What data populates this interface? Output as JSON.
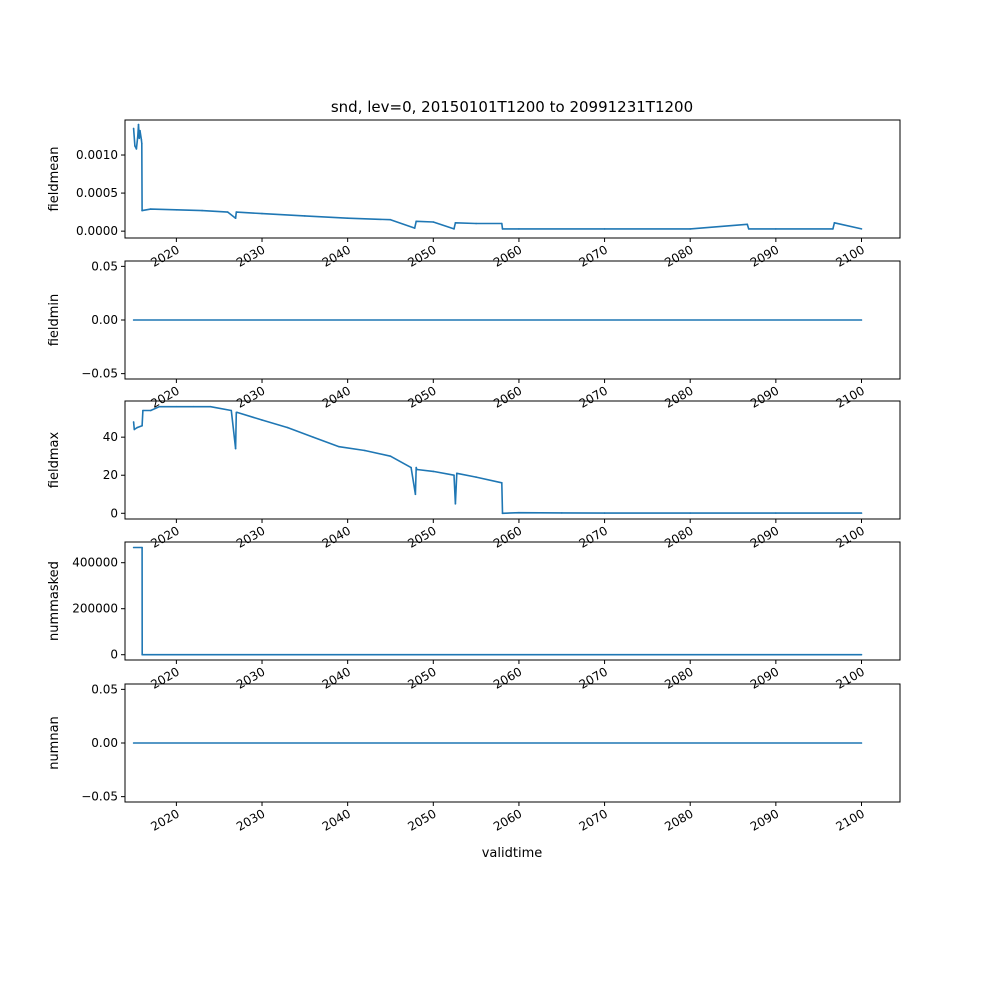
{
  "title": "snd, lev=0, 20150101T1200 to 20991231T1200",
  "xlabel": "validtime",
  "colors": {
    "line": "#1f77b4",
    "axes": "#000000",
    "background": "#ffffff"
  },
  "chart_data": {
    "type": "line",
    "grid": false,
    "legend": "none",
    "x_ticks": [
      "2020",
      "2030",
      "2040",
      "2050",
      "2060",
      "2070",
      "2080",
      "2090",
      "2100"
    ],
    "x_range": [
      "2014-01-01",
      "2104-07-01"
    ],
    "panels": [
      {
        "ylabel": "fieldmean",
        "ylim": [
          -9e-05,
          0.00146
        ],
        "y_ticks": [
          {
            "v": 0.0,
            "label": "0.0000"
          },
          {
            "v": 0.0005,
            "label": "0.0005"
          },
          {
            "v": 0.001,
            "label": "0.0010"
          }
        ],
        "series": [
          {
            "x": [
              "2015-01-01",
              "2015-03-01",
              "2015-05-01",
              "2015-07-01",
              "2015-08-01",
              "2015-09-01",
              "2015-10-01",
              "2015-12-01",
              "2015-12-20",
              "2016-01-01",
              "2017-01-01",
              "2020-01-01",
              "2023-01-01",
              "2026-01-01",
              "2026-12-01",
              "2027-01-01",
              "2030-01-01",
              "2035-01-01",
              "2040-01-01",
              "2045-01-01",
              "2047-11-01",
              "2048-01-01",
              "2050-01-01",
              "2052-06-01",
              "2052-08-01",
              "2055-01-01",
              "2058-01-01",
              "2058-02-01",
              "2060-01-01",
              "2070-01-01",
              "2080-01-01",
              "2086-09-01",
              "2086-11-01",
              "2090-01-01",
              "2096-09-01",
              "2096-11-01",
              "2100-01-01"
            ],
            "y": [
              0.00135,
              0.00112,
              0.00108,
              0.00125,
              0.0014,
              0.00122,
              0.00132,
              0.0012,
              0.00115,
              0.00027,
              0.00029,
              0.00028,
              0.00027,
              0.00025,
              0.00017,
              0.00025,
              0.00023,
              0.0002,
              0.00017,
              0.00015,
              4e-05,
              0.00013,
              0.00012,
              3e-05,
              0.00011,
              0.0001,
              0.0001,
              3e-05,
              3e-05,
              3e-05,
              3e-05,
              9e-05,
              3e-05,
              3e-05,
              3e-05,
              0.00011,
              3e-05
            ]
          }
        ]
      },
      {
        "ylabel": "fieldmin",
        "ylim": [
          -0.055,
          0.055
        ],
        "y_ticks": [
          {
            "v": -0.05,
            "label": "−0.05"
          },
          {
            "v": 0.0,
            "label": "0.00"
          },
          {
            "v": 0.05,
            "label": "0.05"
          }
        ],
        "series": [
          {
            "x": [
              "2015-01-01",
              "2100-01-01"
            ],
            "y": [
              0,
              0
            ]
          }
        ]
      },
      {
        "ylabel": "fieldmax",
        "ylim": [
          -3,
          59
        ],
        "y_ticks": [
          {
            "v": 0,
            "label": "0"
          },
          {
            "v": 20,
            "label": "20"
          },
          {
            "v": 40,
            "label": "40"
          }
        ],
        "series": [
          {
            "x": [
              "2015-01-01",
              "2015-02-01",
              "2015-06-01",
              "2016-01-01",
              "2016-02-01",
              "2017-01-01",
              "2018-01-01",
              "2020-01-01",
              "2022-01-01",
              "2024-01-01",
              "2026-06-01",
              "2026-12-01",
              "2027-01-01",
              "2027-02-01",
              "2030-01-01",
              "2033-01-01",
              "2036-01-01",
              "2039-01-01",
              "2042-01-01",
              "2045-01-01",
              "2047-06-01",
              "2047-12-01",
              "2048-01-01",
              "2048-02-01",
              "2050-01-01",
              "2052-06-01",
              "2052-08-01",
              "2052-10-01",
              "2055-01-01",
              "2058-01-01",
              "2058-02-01",
              "2060-01-01",
              "2065-01-01",
              "2070-01-01",
              "2080-01-01",
              "2090-01-01",
              "2100-01-01"
            ],
            "y": [
              48,
              44,
              45,
              46,
              54,
              54,
              56,
              56,
              56,
              56,
              54,
              34,
              53,
              53,
              49,
              45,
              40,
              35,
              33,
              30,
              24,
              10,
              24,
              23,
              22,
              20,
              5,
              21,
              19,
              16,
              0,
              0.3,
              0.2,
              0.1,
              0.1,
              0.1,
              0.1
            ]
          }
        ]
      },
      {
        "ylabel": "nummasked",
        "ylim": [
          -23000,
          490000
        ],
        "y_ticks": [
          {
            "v": 0,
            "label": "0"
          },
          {
            "v": 200000,
            "label": "200000"
          },
          {
            "v": 400000,
            "label": "400000"
          }
        ],
        "series": [
          {
            "x": [
              "2015-01-01",
              "2016-01-01",
              "2016-01-02",
              "2100-01-01"
            ],
            "y": [
              466000,
              466000,
              0,
              0
            ]
          }
        ]
      },
      {
        "ylabel": "numnan",
        "ylim": [
          -0.055,
          0.055
        ],
        "y_ticks": [
          {
            "v": -0.05,
            "label": "−0.05"
          },
          {
            "v": 0.0,
            "label": "0.00"
          },
          {
            "v": 0.05,
            "label": "0.05"
          }
        ],
        "series": [
          {
            "x": [
              "2015-01-01",
              "2100-01-01"
            ],
            "y": [
              0,
              0
            ]
          }
        ]
      }
    ]
  }
}
